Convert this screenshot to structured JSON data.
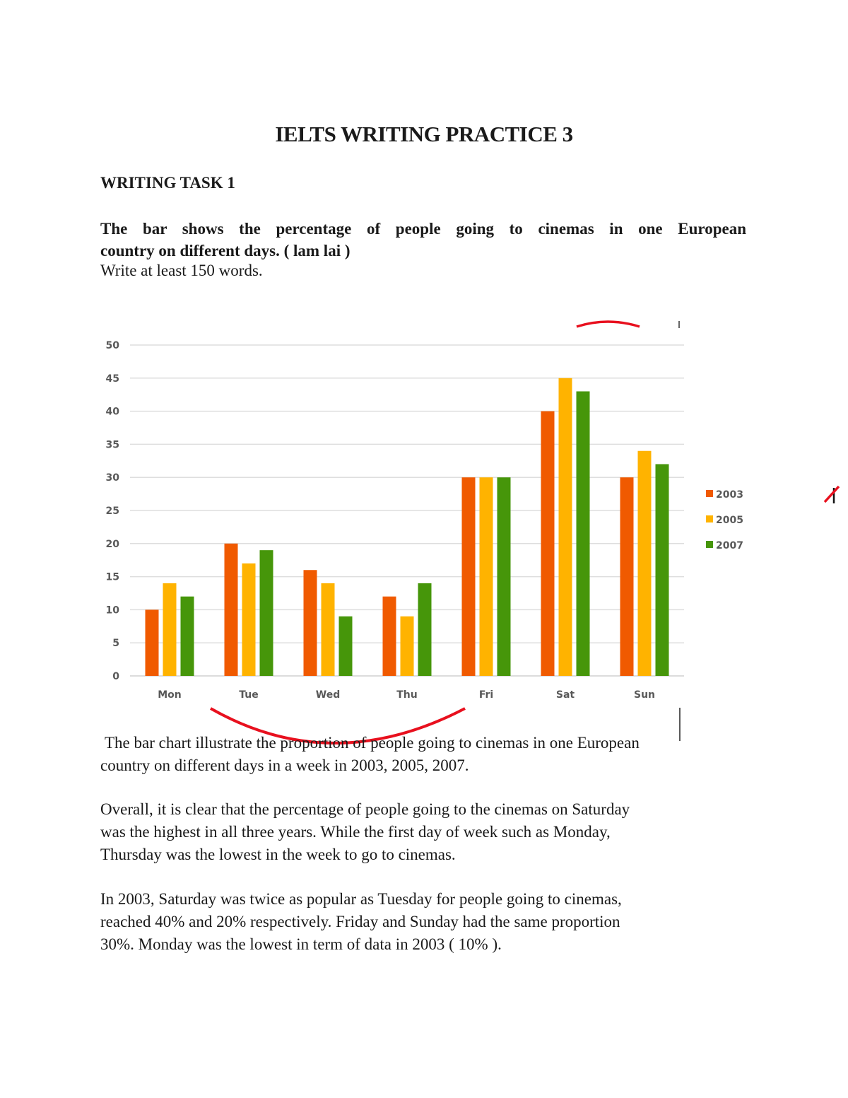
{
  "document": {
    "title": "IELTS WRITING PRACTICE 3",
    "task_heading": "WRITING TASK 1",
    "prompt_line1": "The bar shows the percentage of people going to cinemas in one European",
    "prompt_line2": "country on different days. ( lam lai )",
    "instructions": "Write at least 150 words."
  },
  "essay": {
    "paragraphs": [
      "The bar chart illustrate the proportion of people going to cinemas in one European country on different days in a week in 2003, 2005, 2007.",
      "Overall, it is clear that the percentage of people going to the cinemas on Saturday was the highest in all three years. While the first day of week such as Monday, Thursday was the lowest in the week to go to cinemas.",
      "In 2003, Saturday was twice as popular as Tuesday for people going to cinemas, reached 40% and 20% respectively. Friday and Sunday had the same proportion 30%. Monday was the lowest in term of data in 2003 ( 10% )."
    ],
    "p1_line1": "The bar chart illustrate the proportion of people going to cinemas in one European",
    "p1_line2": "country on different days in a week in 2003, 2005, 2007.",
    "p2_line1": "Overall, it is clear that the percentage of people going to the cinemas on Saturday",
    "p2_line2": "was the highest in all three years. While the first day of week such as Monday,",
    "p2_line3": "Thursday was the lowest in the week to go to cinemas.",
    "p3_line1": "In 2003, Saturday was twice as popular as Tuesday for people going to cinemas,",
    "p3_line2": "reached 40% and 20% respectively. Friday and Sunday had the same proportion",
    "p3_line3": "30%. Monday was the lowest in term of data in 2003 ( 10% )."
  },
  "annotations": {
    "color": "#e8101e",
    "marks": [
      "red-arc-top",
      "red-arc-bottom",
      "red-strike-right"
    ]
  },
  "chart_data": {
    "type": "bar",
    "title": "",
    "xlabel": "",
    "ylabel": "",
    "categories": [
      "Mon",
      "Tue",
      "Wed",
      "Thu",
      "Fri",
      "Sat",
      "Sun"
    ],
    "series": [
      {
        "name": "2003",
        "color": "#f05a00",
        "values": [
          10,
          20,
          16,
          12,
          30,
          40,
          30
        ]
      },
      {
        "name": "2005",
        "color": "#ffb300",
        "values": [
          14,
          17,
          14,
          9,
          30,
          45,
          34
        ]
      },
      {
        "name": "2007",
        "color": "#46960a",
        "values": [
          12,
          19,
          9,
          14,
          30,
          43,
          32
        ]
      }
    ],
    "ylim": [
      0,
      50
    ],
    "yticks": [
      0,
      5,
      10,
      15,
      20,
      25,
      30,
      35,
      40,
      45,
      50
    ],
    "grid": true,
    "legend_position": "right"
  }
}
